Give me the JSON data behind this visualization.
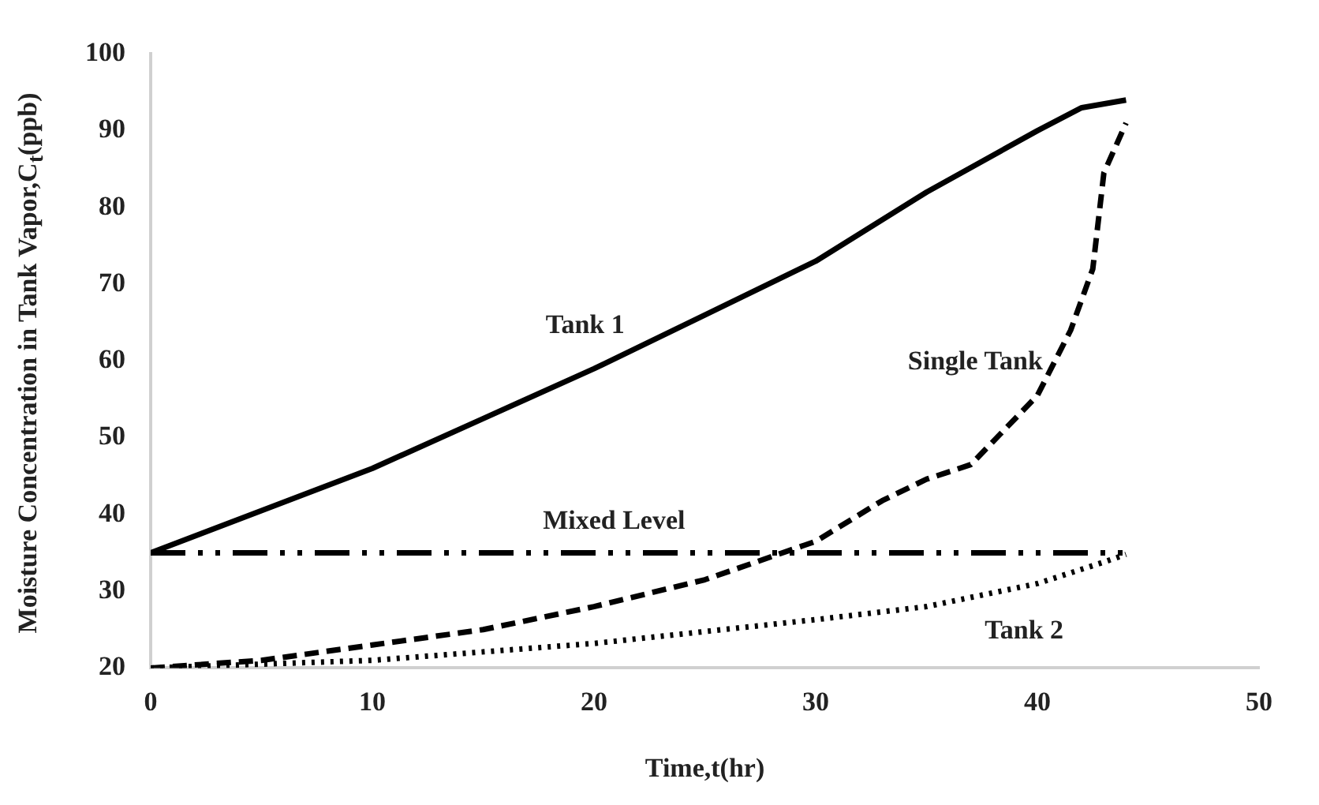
{
  "chart_data": {
    "type": "line",
    "xlabel": "Time,t(hr)",
    "ylabel": "Moisture Concentration in Tank Vapor,C$_{t}$(ppb)",
    "xlim": [
      0,
      50
    ],
    "xticks": [
      0,
      10,
      20,
      30,
      40,
      50
    ],
    "ylim": [
      20,
      100
    ],
    "yticks": [
      20,
      30,
      40,
      50,
      60,
      70,
      80,
      90,
      100
    ],
    "grid": false,
    "legend": false,
    "marker": "none",
    "series": [
      {
        "name": "Tank 1",
        "color": "#000000",
        "line_style": "solid",
        "x": [
          0,
          5,
          10,
          15,
          20,
          25,
          30,
          35,
          40,
          42,
          44
        ],
        "values": [
          35,
          40.5,
          46,
          52.5,
          59,
          66,
          73,
          82,
          90,
          93,
          94
        ]
      },
      {
        "name": "Single Tank",
        "color": "#000000",
        "line_style": "dashed",
        "x": [
          0,
          5,
          10,
          15,
          20,
          25,
          28.5,
          30,
          33,
          35,
          37,
          38.5,
          40,
          41.5,
          42.5,
          43,
          44
        ],
        "values": [
          20,
          21,
          23,
          25,
          28,
          31.5,
          35,
          36.5,
          41.8,
          44.6,
          46.5,
          51,
          55.5,
          64,
          72,
          84.5,
          91
        ]
      },
      {
        "name": "Mixed Level",
        "color": "#000000",
        "line_style": "dashdot",
        "x": [
          0,
          44
        ],
        "values": [
          35,
          35
        ]
      },
      {
        "name": "Tank 2",
        "color": "#000000",
        "line_style": "dotted",
        "x": [
          0,
          10,
          20,
          30,
          35,
          40,
          43,
          44
        ],
        "values": [
          20,
          21,
          23.2,
          26.3,
          28,
          31,
          33.8,
          34.8
        ]
      }
    ]
  }
}
